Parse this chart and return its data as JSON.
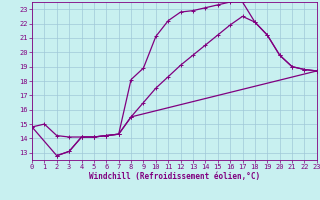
{
  "xlabel": "Windchill (Refroidissement éolien,°C)",
  "bg_color": "#c8f0f0",
  "grid_color": "#a0c8d8",
  "line_color": "#800080",
  "xlim": [
    0,
    23
  ],
  "ylim": [
    12.5,
    23.5
  ],
  "xticks": [
    0,
    1,
    2,
    3,
    4,
    5,
    6,
    7,
    8,
    9,
    10,
    11,
    12,
    13,
    14,
    15,
    16,
    17,
    18,
    19,
    20,
    21,
    22,
    23
  ],
  "yticks": [
    13,
    14,
    15,
    16,
    17,
    18,
    19,
    20,
    21,
    22,
    23
  ],
  "line1_x": [
    2,
    3,
    4,
    5,
    6,
    7,
    8,
    9,
    10,
    11,
    12,
    13,
    14,
    15,
    16,
    17,
    18,
    19,
    20,
    21,
    22,
    23
  ],
  "line1_y": [
    12.8,
    13.1,
    14.1,
    14.1,
    14.2,
    14.3,
    18.1,
    18.9,
    21.1,
    22.2,
    22.8,
    22.9,
    23.1,
    23.3,
    23.5,
    23.5,
    22.1,
    21.2,
    19.8,
    19.0,
    18.8,
    18.7
  ],
  "line2_x": [
    0,
    1,
    2,
    3,
    4,
    5,
    6,
    7,
    8,
    9,
    10,
    11,
    12,
    13,
    14,
    15,
    16,
    17,
    18,
    19,
    20,
    21,
    22,
    23
  ],
  "line2_y": [
    14.8,
    15.0,
    14.2,
    14.1,
    14.1,
    14.1,
    14.2,
    14.3,
    15.5,
    16.5,
    17.5,
    18.3,
    19.1,
    19.8,
    20.5,
    21.2,
    21.9,
    22.5,
    22.1,
    21.2,
    19.8,
    19.0,
    18.8,
    18.7
  ],
  "line3_x": [
    0,
    2,
    3,
    4,
    5,
    6,
    7,
    8,
    23
  ],
  "line3_y": [
    14.8,
    12.8,
    13.1,
    14.1,
    14.1,
    14.2,
    14.3,
    15.5,
    18.7
  ],
  "marker_size": 3.0,
  "linewidth": 0.9,
  "tick_fontsize": 5.0,
  "label_fontsize": 5.5
}
